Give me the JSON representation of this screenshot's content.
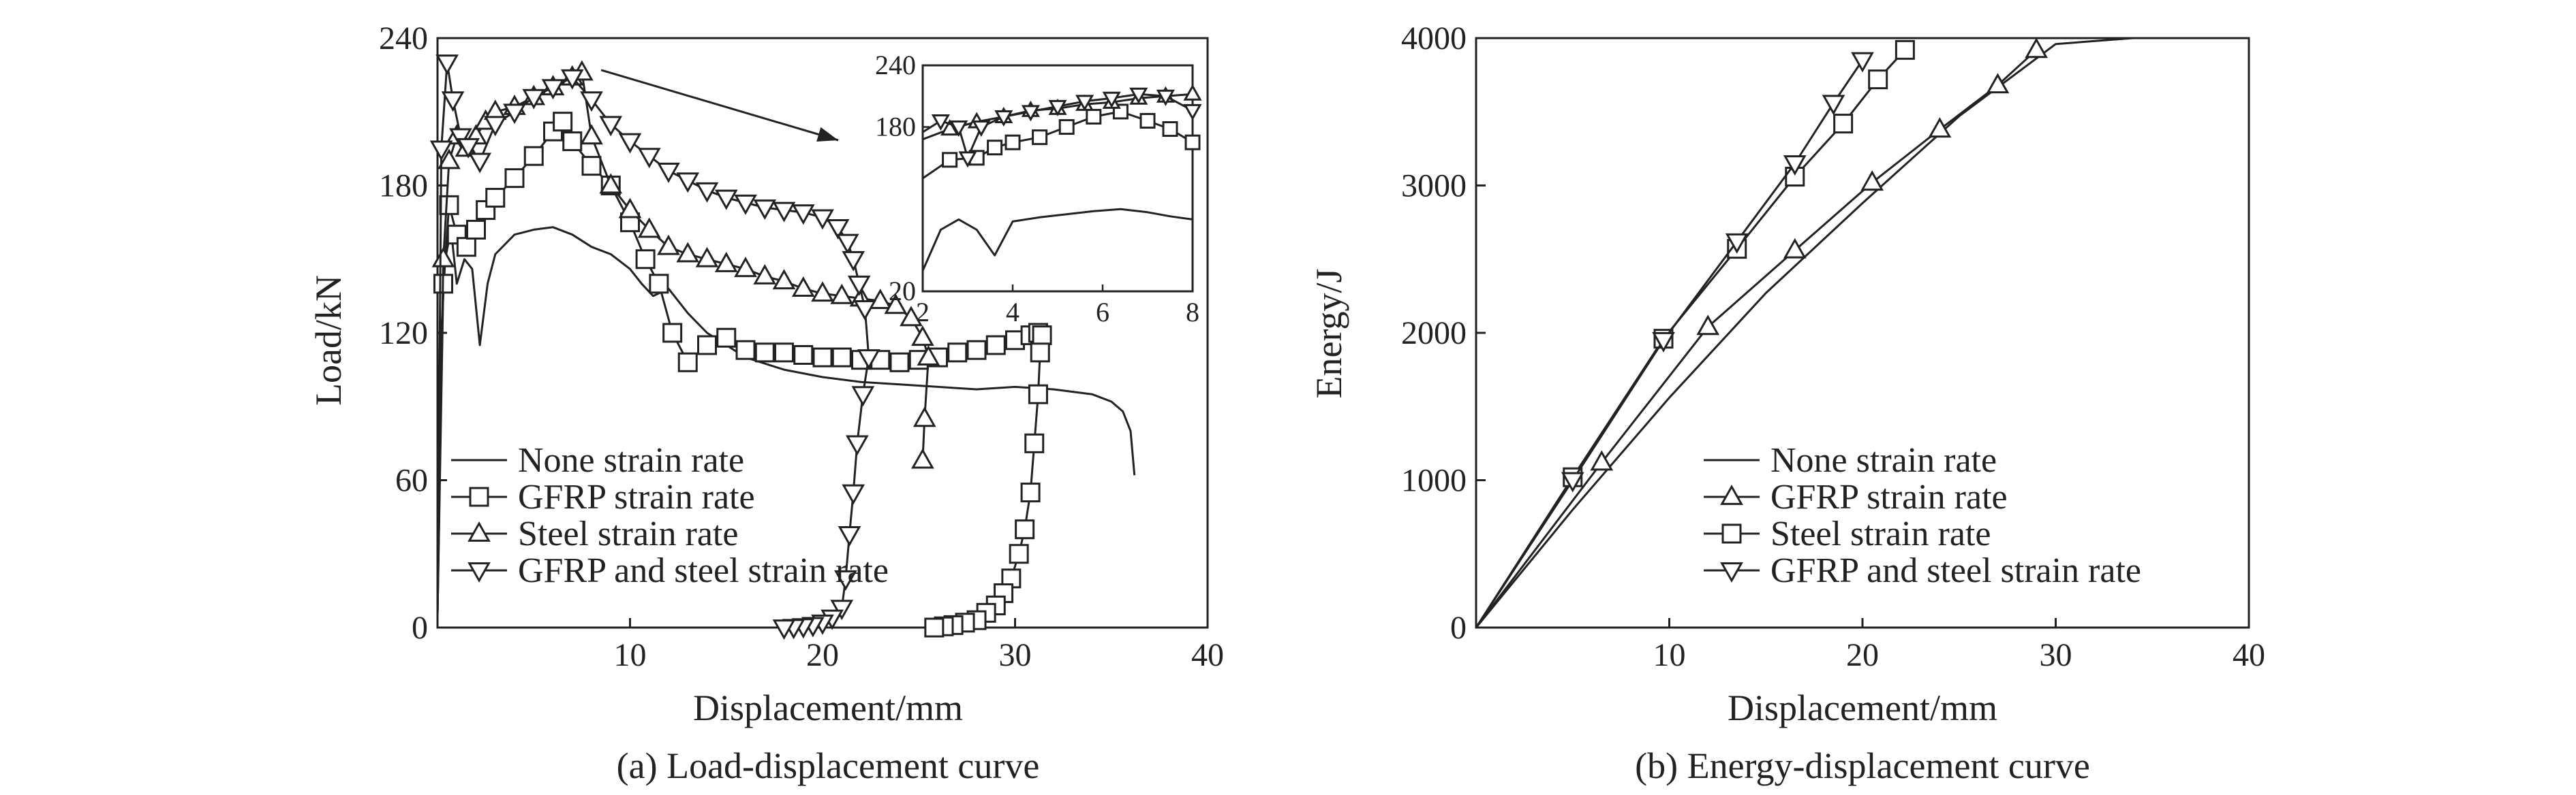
{
  "chart_data": [
    {
      "id": "a",
      "type": "line",
      "caption": "(a) Load-displacement curve",
      "xlabel": "Displacement/mm",
      "ylabel": "Load/kN",
      "xlim": [
        0,
        40
      ],
      "ylim": [
        0,
        240
      ],
      "xticks": [
        10,
        20,
        30,
        40
      ],
      "yticks": [
        0,
        60,
        120,
        180,
        240
      ],
      "legend_position": "bottom-left",
      "series": [
        {
          "name": "None strain rate",
          "marker": "none",
          "x": [
            0,
            0.2,
            0.4,
            0.7,
            1.0,
            1.4,
            1.8,
            2.2,
            2.6,
            3,
            4,
            5,
            6,
            7,
            8,
            9,
            10,
            10.6,
            11.2,
            12,
            13,
            14,
            15,
            16,
            18,
            20,
            22,
            24,
            26,
            28,
            30,
            32,
            34,
            35,
            35.6,
            36,
            36.2
          ],
          "y": [
            5,
            120,
            150,
            162,
            140,
            150,
            146,
            115,
            140,
            152,
            160,
            162,
            163,
            160,
            155,
            152,
            146,
            140,
            135,
            138,
            128,
            120,
            115,
            110,
            105,
            102,
            100,
            99,
            98,
            97,
            98,
            97,
            95,
            92,
            88,
            80,
            62
          ]
        },
        {
          "name": "GFRP strain rate",
          "marker": "square",
          "x": [
            0,
            0.3,
            0.6,
            1,
            1.5,
            2,
            2.5,
            3,
            4,
            5,
            6,
            6.5,
            7,
            8,
            9,
            10,
            10.8,
            11.5,
            12.2,
            13,
            14,
            15,
            16,
            17,
            18,
            19,
            20,
            21,
            22,
            23,
            24,
            25,
            26,
            27,
            28,
            29,
            30,
            30.8,
            31.2,
            31.4,
            31.3,
            31.2,
            31,
            30.8,
            30.5,
            30.2,
            29.8,
            29.4,
            29,
            28.5,
            28,
            27.4,
            26.8,
            26.3,
            25.8
          ],
          "y": [
            5,
            140,
            172,
            160,
            155,
            162,
            170,
            175,
            183,
            192,
            202,
            206,
            198,
            188,
            180,
            165,
            150,
            140,
            120,
            108,
            115,
            118,
            113,
            112,
            112,
            111,
            110,
            110,
            109,
            109,
            108,
            109,
            110,
            112,
            113,
            115,
            117,
            119,
            120,
            119,
            112,
            95,
            75,
            55,
            40,
            30,
            20,
            14,
            9,
            6,
            3,
            2,
            1,
            0.5,
            0
          ]
        },
        {
          "name": "Steel strain rate",
          "marker": "triangle-up",
          "x": [
            0,
            0.3,
            0.6,
            1,
            1.5,
            2,
            2.5,
            3,
            4,
            5,
            6,
            7,
            7.5,
            8,
            9,
            10,
            11,
            12,
            13,
            14,
            15,
            16,
            17,
            18,
            19,
            20,
            21,
            22,
            23,
            23.8,
            24.6,
            25.2,
            25.5,
            25.3,
            25.2
          ],
          "y": [
            5,
            150,
            190,
            200,
            195,
            200,
            206,
            210,
            212,
            216,
            220,
            224,
            226,
            200,
            180,
            170,
            162,
            155,
            152,
            150,
            148,
            146,
            143,
            141,
            138,
            136,
            135,
            134,
            133,
            131,
            126,
            118,
            110,
            85,
            68
          ]
        },
        {
          "name": "GFRP and steel strain rate",
          "marker": "triangle-down",
          "x": [
            0,
            0.2,
            0.5,
            0.8,
            1.2,
            1.6,
            2.2,
            3,
            4,
            5,
            6,
            7,
            8,
            9,
            10,
            11,
            12,
            13,
            14,
            15,
            16,
            17,
            18,
            19,
            20,
            20.8,
            21.3,
            21.6,
            21.9,
            22.2,
            22.4,
            22.1,
            21.8,
            21.6,
            21.4,
            21.2,
            21.0,
            20.5,
            20.0,
            19.5,
            19.0,
            18.5,
            18.0
          ],
          "y": [
            5,
            195,
            230,
            215,
            200,
            196,
            190,
            205,
            210,
            216,
            220,
            224,
            215,
            205,
            198,
            192,
            186,
            182,
            178,
            175,
            173,
            171,
            170,
            169,
            167,
            163,
            157,
            150,
            140,
            130,
            110,
            95,
            75,
            55,
            38,
            20,
            8,
            4,
            2,
            1,
            0.5,
            0.2,
            0
          ]
        }
      ],
      "inset": {
        "xlim": [
          2,
          8
        ],
        "ylim": [
          20,
          240
        ],
        "xticks": [
          2,
          4,
          6,
          8
        ],
        "yticks": [
          20,
          180,
          240
        ],
        "ytick_labels": [
          "20",
          "180",
          "240"
        ],
        "series": [
          {
            "name": "None strain rate",
            "marker": "none",
            "x": [
              2,
              2.4,
              2.8,
              3.2,
              3.6,
              4,
              4.6,
              5.2,
              5.8,
              6.4,
              7,
              7.5,
              8
            ],
            "y": [
              40,
              80,
              90,
              80,
              55,
              88,
              92,
              95,
              98,
              100,
              97,
              93,
              90
            ]
          },
          {
            "name": "GFRP strain rate",
            "marker": "square",
            "x": [
              2,
              2.6,
              3.2,
              3.6,
              4,
              4.6,
              5.2,
              5.8,
              6.4,
              7,
              7.5,
              8
            ],
            "y": [
              130,
              148,
              150,
              160,
              165,
              170,
              180,
              190,
              195,
              186,
              178,
              165
            ]
          },
          {
            "name": "Steel strain rate",
            "marker": "triangle-up",
            "x": [
              2,
              2.6,
              3.2,
              3.8,
              4.4,
              5,
              5.6,
              6.2,
              6.8,
              7.4,
              8
            ],
            "y": [
              168,
              178,
              185,
              190,
              196,
              198,
              202,
              204,
              208,
              210,
              212
            ]
          },
          {
            "name": "GFRP and steel strain rate",
            "marker": "triangle-down",
            "x": [
              2,
              2.4,
              2.8,
              3.0,
              3.3,
              3.8,
              4.4,
              5,
              5.6,
              6.2,
              6.8,
              7.4,
              8
            ],
            "y": [
              175,
              186,
              180,
              150,
              180,
              190,
              195,
              200,
              205,
              208,
              212,
              210,
              196
            ]
          }
        ]
      }
    },
    {
      "id": "b",
      "type": "line",
      "caption": "(b) Energy-displacement curve",
      "xlabel": "Displacement/mm",
      "ylabel": "Energy/J",
      "xlim": [
        0,
        40
      ],
      "ylim": [
        0,
        4000
      ],
      "xticks": [
        10,
        20,
        30,
        40
      ],
      "yticks": [
        0,
        1000,
        2000,
        3000,
        4000
      ],
      "legend_position": "bottom-right",
      "series": [
        {
          "name": "None strain rate",
          "marker": "none",
          "x": [
            0,
            5,
            10,
            15,
            20,
            25,
            30,
            34
          ],
          "y": [
            0,
            800,
            1560,
            2270,
            2880,
            3470,
            3960,
            4000
          ]
        },
        {
          "name": "GFRP strain rate",
          "marker": "triangle-up",
          "x": [
            0,
            6.5,
            12,
            16.5,
            20.5,
            24,
            27,
            29
          ],
          "y": [
            0,
            1120,
            2040,
            2560,
            3020,
            3380,
            3680,
            3920
          ]
        },
        {
          "name": "Steel strain rate",
          "marker": "square",
          "x": [
            0,
            5,
            9.7,
            13.5,
            16.5,
            19,
            20.8,
            22.2
          ],
          "y": [
            0,
            1020,
            1960,
            2570,
            3060,
            3420,
            3720,
            3920
          ]
        },
        {
          "name": "GFRP and steel strain rate",
          "marker": "triangle-down",
          "x": [
            0,
            5,
            9.7,
            13.5,
            16.5,
            18.5,
            20
          ],
          "y": [
            0,
            1000,
            1950,
            2620,
            3150,
            3560,
            3850
          ]
        }
      ]
    }
  ]
}
